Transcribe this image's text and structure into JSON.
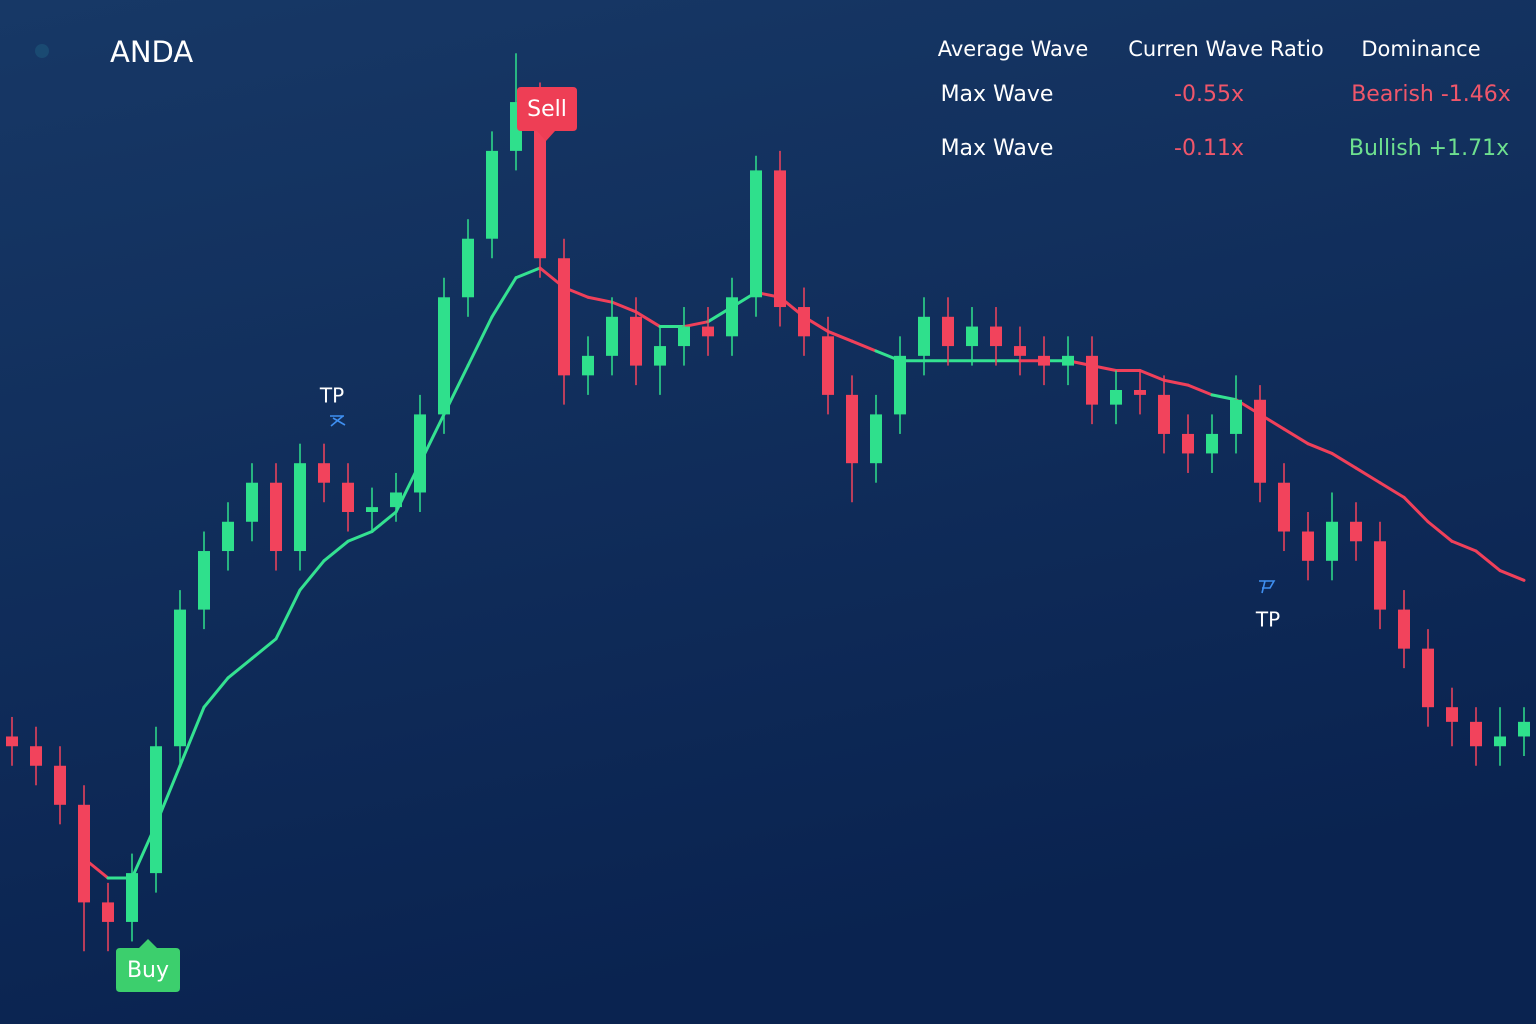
{
  "chart_data": {
    "type": "candlestick",
    "title": "ANDA",
    "ylim": [
      0,
      100
    ],
    "up_color": "#2fe08c",
    "down_color": "#f2435c",
    "open": [
      27,
      26,
      24,
      20,
      10,
      8,
      13,
      26,
      40,
      46,
      49,
      53,
      46,
      55,
      53,
      50,
      50.5,
      52,
      60,
      72,
      78,
      87,
      92,
      76,
      64,
      66,
      70,
      65,
      67,
      69,
      68,
      72,
      85,
      71,
      68,
      62,
      55,
      60,
      66,
      70,
      67,
      69,
      67,
      66,
      65,
      66,
      61,
      62.5,
      62,
      58,
      56,
      58,
      61.5,
      53,
      48,
      45,
      49,
      47,
      40,
      36,
      30,
      28.5,
      26,
      27
    ],
    "high": [
      29,
      28,
      26,
      22,
      12,
      15,
      28,
      42,
      48,
      51,
      55,
      55,
      57,
      57,
      55,
      52.5,
      54,
      62,
      74,
      80,
      89,
      97,
      94,
      78,
      68,
      72,
      72,
      69,
      71,
      71,
      74,
      86.5,
      87,
      73,
      70,
      64,
      62,
      68,
      72,
      72,
      71,
      71,
      69,
      68,
      68,
      68,
      64.5,
      64.5,
      64,
      60,
      60,
      64,
      63,
      55,
      50,
      52,
      51,
      49,
      42,
      38,
      32,
      30,
      30,
      30
    ],
    "low": [
      24,
      22,
      18,
      5,
      5,
      6,
      11,
      24,
      38,
      44,
      47,
      44,
      44,
      51,
      48,
      48,
      49,
      50,
      58,
      70,
      76,
      85,
      74,
      61,
      62,
      64,
      63,
      62,
      65,
      66,
      66,
      70,
      69,
      66,
      60,
      51,
      53,
      58,
      64,
      65,
      65,
      65,
      64,
      63,
      63,
      59,
      59,
      60,
      56,
      54,
      54,
      56,
      51,
      46,
      43,
      43,
      45,
      38,
      34,
      28,
      26,
      24,
      24,
      25
    ],
    "close": [
      26,
      24,
      20,
      10,
      8,
      13,
      26,
      40,
      46,
      49,
      53,
      46,
      55,
      53,
      50,
      50.5,
      52,
      60,
      72,
      78,
      87,
      92,
      76,
      64,
      66,
      70,
      65,
      67,
      69,
      68,
      72,
      85,
      71,
      68,
      62,
      55,
      60,
      66,
      70,
      67,
      69,
      67,
      66,
      65,
      66,
      61,
      62.5,
      62,
      58,
      56,
      58,
      61.5,
      53,
      48,
      45,
      49,
      47,
      40,
      36,
      30,
      28.5,
      26,
      27,
      28.5
    ],
    "ma": {
      "up_color": "#34e291",
      "down_color": "#f0405a",
      "values": [
        null,
        null,
        null,
        14.5,
        12.5,
        12.5,
        18,
        24,
        30,
        33,
        35,
        37,
        42,
        45,
        47,
        48,
        50,
        55,
        60,
        65,
        70,
        74,
        75,
        73,
        72,
        71.5,
        70.5,
        69,
        69,
        69.5,
        71,
        72.5,
        72,
        70,
        68.5,
        67.5,
        66.5,
        65.5,
        65.5,
        65.5,
        65.5,
        65.5,
        65.5,
        65.5,
        65.5,
        65,
        64.5,
        64.5,
        63.5,
        63,
        62,
        61.5,
        60,
        58.5,
        57,
        56,
        54.5,
        53,
        51.5,
        49,
        47,
        46,
        44,
        43
      ]
    },
    "signals": {
      "buy": "Buy",
      "sell": "Sell",
      "tp1": "TP",
      "tp2": "TP"
    }
  },
  "table": {
    "headers": [
      "Average Wave",
      "Curren Wave Ratio",
      "Dominance"
    ],
    "rows": [
      [
        "Max Wave",
        "-0.55x",
        "Bearish -1.46x"
      ],
      [
        "Max Wave",
        "-0.11x",
        "Bullish +1.71x"
      ]
    ]
  }
}
